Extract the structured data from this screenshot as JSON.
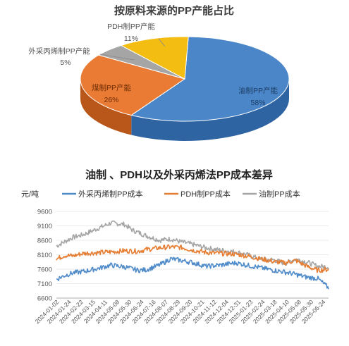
{
  "pie": {
    "title": "按原料来源的PP产能占比",
    "type": "pie",
    "slices": [
      {
        "label": "油制PP产能",
        "value": 58,
        "pct_label": "58%",
        "color": "#4a86c8"
      },
      {
        "label": "煤制PP产能",
        "value": 26,
        "pct_label": "26%",
        "color": "#ea7b34"
      },
      {
        "label": "外采丙烯制PP产能",
        "value": 5,
        "pct_label": "5%",
        "color": "#a5a5a5"
      },
      {
        "label": "PDH制PP产能",
        "value": 11,
        "pct_label": "11%",
        "color": "#f3bd12"
      }
    ]
  },
  "line": {
    "title": "油制 、PDH以及外采丙烯法PP成本差异",
    "type": "line",
    "unit_label": "元/吨",
    "ylim": [
      6600,
      9600
    ],
    "yticks": [
      "9600",
      "9100",
      "8600",
      "8100",
      "7600",
      "7100",
      "6600"
    ],
    "xticks": [
      "2024-01-02",
      "2024-01-24",
      "2024-02-22",
      "2024-03-15",
      "2024-04-11",
      "2024-05-08",
      "2024-05-30",
      "2024-06-24",
      "2024-07-16",
      "2024-08-07",
      "2024-08-29",
      "2024-09-20",
      "2024-10-21",
      "2024-11-12",
      "2024-12-04",
      "2024-12-31",
      "2025-01-23",
      "2025-02-24",
      "2025-03-18",
      "2025-04-10",
      "2025-05-08",
      "2025-05-30",
      "2025-06-24"
    ],
    "series": [
      {
        "name": "外采丙烯制PP成本",
        "color": "#4f8bc9",
        "anchors": [
          [
            0,
            7250
          ],
          [
            0.03,
            7380
          ],
          [
            0.06,
            7470
          ],
          [
            0.1,
            7520
          ],
          [
            0.15,
            7620
          ],
          [
            0.2,
            7740
          ],
          [
            0.25,
            7680
          ],
          [
            0.3,
            7560
          ],
          [
            0.33,
            7580
          ],
          [
            0.38,
            7750
          ],
          [
            0.42,
            7960
          ],
          [
            0.46,
            7900
          ],
          [
            0.5,
            7830
          ],
          [
            0.55,
            7700
          ],
          [
            0.6,
            7740
          ],
          [
            0.66,
            7820
          ],
          [
            0.7,
            7740
          ],
          [
            0.75,
            7650
          ],
          [
            0.8,
            7560
          ],
          [
            0.84,
            7500
          ],
          [
            0.88,
            7420
          ],
          [
            0.92,
            7320
          ],
          [
            0.96,
            7280
          ],
          [
            1,
            6950
          ]
        ]
      },
      {
        "name": "PDH制PP成本",
        "color": "#e57d32",
        "anchors": [
          [
            0,
            7950
          ],
          [
            0.03,
            8080
          ],
          [
            0.06,
            8060
          ],
          [
            0.1,
            8150
          ],
          [
            0.15,
            8170
          ],
          [
            0.2,
            8200
          ],
          [
            0.25,
            8240
          ],
          [
            0.3,
            8220
          ],
          [
            0.33,
            8280
          ],
          [
            0.38,
            8340
          ],
          [
            0.42,
            8370
          ],
          [
            0.46,
            8350
          ],
          [
            0.5,
            8260
          ],
          [
            0.55,
            8180
          ],
          [
            0.6,
            8150
          ],
          [
            0.66,
            8120
          ],
          [
            0.7,
            8060
          ],
          [
            0.75,
            7960
          ],
          [
            0.8,
            7860
          ],
          [
            0.84,
            7820
          ],
          [
            0.88,
            7900
          ],
          [
            0.92,
            7700
          ],
          [
            0.96,
            7560
          ],
          [
            1,
            7600
          ]
        ]
      },
      {
        "name": "油制PP成本",
        "color": "#a5a5a5",
        "anchors": [
          [
            0,
            8400
          ],
          [
            0.03,
            8550
          ],
          [
            0.06,
            8700
          ],
          [
            0.1,
            8800
          ],
          [
            0.15,
            9000
          ],
          [
            0.2,
            9200
          ],
          [
            0.25,
            9150
          ],
          [
            0.28,
            8950
          ],
          [
            0.33,
            8760
          ],
          [
            0.38,
            8600
          ],
          [
            0.42,
            8650
          ],
          [
            0.46,
            8540
          ],
          [
            0.5,
            8460
          ],
          [
            0.55,
            8340
          ],
          [
            0.6,
            8260
          ],
          [
            0.66,
            8200
          ],
          [
            0.7,
            8100
          ],
          [
            0.75,
            7950
          ],
          [
            0.8,
            7920
          ],
          [
            0.84,
            7800
          ],
          [
            0.88,
            7950
          ],
          [
            0.92,
            7850
          ],
          [
            0.96,
            7700
          ],
          [
            1,
            7680
          ]
        ]
      }
    ]
  }
}
